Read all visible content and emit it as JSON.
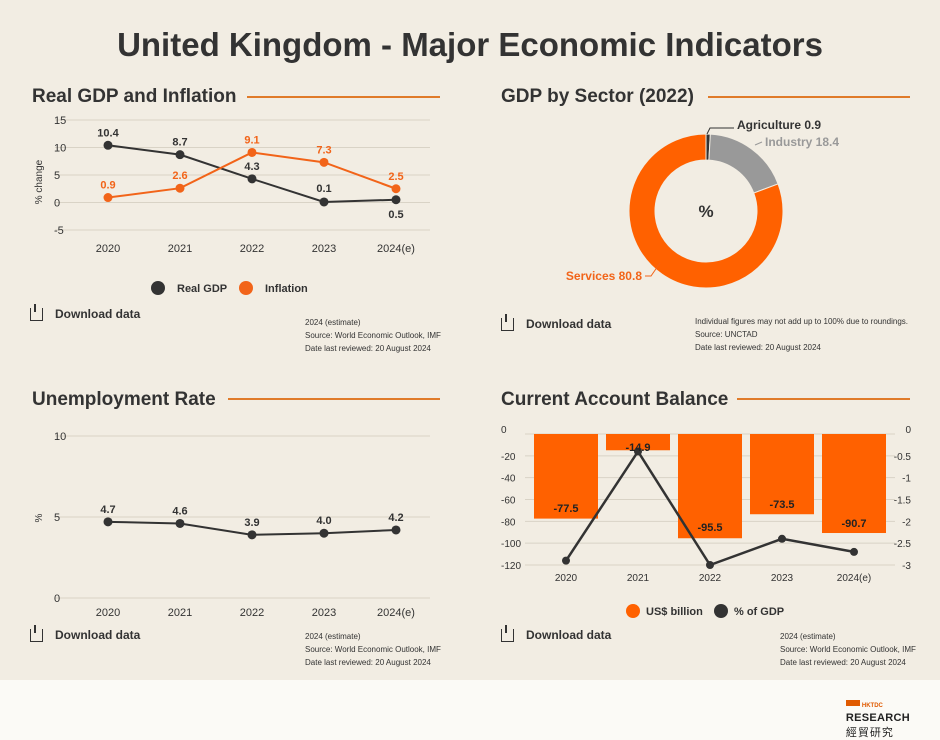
{
  "page": {
    "title": "United Kingdom - Major Economic Indicators"
  },
  "common": {
    "download_label": "Download data"
  },
  "gdp_panel": {
    "title": "Real GDP and Inflation",
    "notes": [
      "2024 (estimate)",
      "Source: World Economic Outlook, IMF",
      "Date last reviewed: 20 August 2024"
    ]
  },
  "sector_panel": {
    "title": "GDP by Sector (2022)",
    "notes": [
      "Individual figures may not add up to 100% due to roundings.",
      "Source: UNCTAD",
      "Date last reviewed: 20 August 2024"
    ]
  },
  "unemp_panel": {
    "title": "Unemployment Rate",
    "notes": [
      "2024 (estimate)",
      "Source: World Economic Outlook, IMF",
      "Date last reviewed: 20 August 2024"
    ]
  },
  "ca_panel": {
    "title": "Current Account Balance",
    "notes": [
      "2024 (estimate)",
      "Source: World Economic Outlook, IMF",
      "Date last reviewed: 20 August 2024"
    ]
  },
  "footer": {
    "logo_top": "HKTDC",
    "logo_main": "RESEARCH",
    "logo_cn": "經貿研究"
  },
  "chart_data": [
    {
      "id": "gdp",
      "type": "line",
      "title": "Real GDP and Inflation",
      "ylabel": "% change",
      "ylim": [
        -5,
        15
      ],
      "yticks": [
        15,
        10,
        5,
        0,
        -5
      ],
      "categories": [
        "2020",
        "2021",
        "2022",
        "2023",
        "2024(e)"
      ],
      "series": [
        {
          "name": "Real GDP",
          "color": "#333333",
          "values": [
            10.4,
            8.7,
            4.3,
            0.1,
            0.5
          ],
          "label_text": [
            "10.4",
            "8.7",
            "4.3",
            "0.1",
            "0.5"
          ]
        },
        {
          "name": "Inflation",
          "color": "#f26419",
          "values": [
            0.9,
            2.6,
            9.1,
            7.3,
            2.5
          ],
          "label_text": [
            "0.9",
            "2.6",
            "9.1",
            "7.3",
            "2.5"
          ]
        }
      ]
    },
    {
      "id": "sector",
      "type": "pie",
      "title": "GDP by Sector (2022)",
      "center_label": "%",
      "slices": [
        {
          "name": "Agriculture",
          "value": 0.9,
          "color": "#333333",
          "label": "Agriculture 0.9"
        },
        {
          "name": "Industry",
          "value": 18.4,
          "color": "#999999",
          "label": "Industry 18.4"
        },
        {
          "name": "Services",
          "value": 80.8,
          "color": "#ff6100",
          "label": "Services 80.8"
        }
      ]
    },
    {
      "id": "unemp",
      "type": "line",
      "title": "Unemployment Rate",
      "ylabel": "%",
      "ylim": [
        0,
        10
      ],
      "yticks": [
        10,
        5,
        0
      ],
      "categories": [
        "2020",
        "2021",
        "2022",
        "2023",
        "2024(e)"
      ],
      "series": [
        {
          "name": "Unemployment Rate",
          "color": "#333333",
          "values": [
            4.7,
            4.6,
            3.9,
            4.0,
            4.2
          ],
          "label_text": [
            "4.7",
            "4.6",
            "3.9",
            "4.0",
            "4.2"
          ]
        }
      ]
    },
    {
      "id": "ca",
      "type": "bar",
      "title": "Current Account Balance",
      "categories": [
        "2020",
        "2021",
        "2022",
        "2023",
        "2024(e)"
      ],
      "ylim_left": [
        -120,
        0
      ],
      "yticks_left": [
        0,
        -20,
        -40,
        -60,
        -80,
        -100,
        -120
      ],
      "ylim_right": [
        -3,
        0
      ],
      "yticks_right": [
        0,
        -0.5,
        -1,
        -1.5,
        -2,
        -2.5,
        -3
      ],
      "series": [
        {
          "name": "US$ billion",
          "color": "#ff6100",
          "axis": "left",
          "values": [
            -77.5,
            -14.9,
            -95.5,
            -73.5,
            -90.7
          ],
          "label_text": [
            "-77.5",
            "-14.9",
            "-95.5",
            "-73.5",
            "-90.7"
          ]
        },
        {
          "name": "% of GDP",
          "color": "#333333",
          "axis": "right",
          "values": [
            -2.9,
            -0.4,
            -3.0,
            -2.4,
            -2.7
          ]
        }
      ]
    }
  ]
}
